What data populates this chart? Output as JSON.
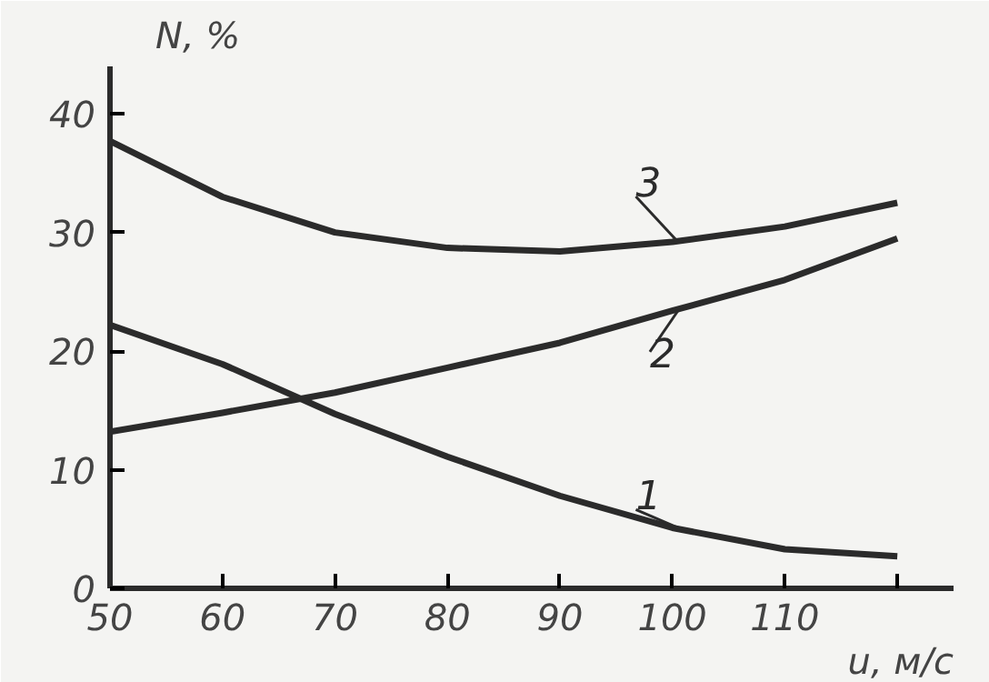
{
  "chart_data": {
    "type": "line",
    "xlabel": "u, м/с",
    "ylabel": "N, %",
    "x": [
      50,
      60,
      70,
      80,
      90,
      100,
      110,
      120
    ],
    "series": [
      {
        "name": "1",
        "color": "#2b2b2b",
        "values": [
          22.2,
          18.9,
          14.7,
          11.1,
          7.8,
          5.1,
          3.3,
          2.7
        ]
      },
      {
        "name": "2",
        "color": "#2b2b2b",
        "values": [
          13.2,
          14.8,
          16.5,
          18.6,
          20.7,
          23.4,
          26,
          29.5
        ]
      },
      {
        "name": "3",
        "color": "#2b2b2b",
        "values": [
          37.7,
          33,
          30,
          28.7,
          28.4,
          29.2,
          30.5,
          32.5
        ]
      }
    ],
    "xlim": [
      50,
      125
    ],
    "ylim": [
      0,
      44
    ],
    "xticks": [
      50,
      60,
      70,
      80,
      90,
      100,
      110,
      {
        "value": 120,
        "label": null
      }
    ],
    "yticks": [
      0,
      10,
      20,
      30,
      40
    ],
    "grid": false,
    "marker": "none",
    "line_style": "solid"
  }
}
